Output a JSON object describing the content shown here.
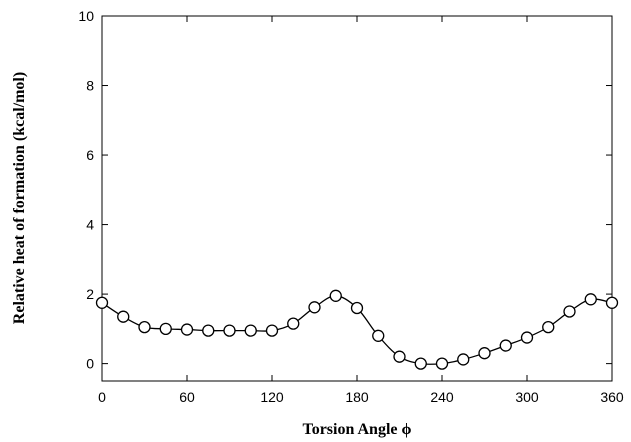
{
  "chart_data": {
    "type": "line",
    "title": "",
    "xlabel": "Torsion Angle ϕ",
    "ylabel": "Relative heat of formation (kcal/mol)",
    "xlim": [
      0,
      360
    ],
    "ylim": [
      -0.5,
      10
    ],
    "x_ticks": [
      0,
      60,
      120,
      180,
      240,
      300,
      360
    ],
    "y_ticks": [
      0,
      2,
      4,
      6,
      8,
      10
    ],
    "grid": false,
    "legend": "none",
    "markers": "open-circle",
    "colors": {
      "line": "#000000",
      "marker": "#000000",
      "background": "#ffffff"
    },
    "series": [
      {
        "x": [
          0,
          15,
          30,
          45,
          60,
          75,
          90,
          105,
          120,
          135,
          150,
          165,
          180,
          195,
          210,
          225,
          240,
          255,
          270,
          285,
          300,
          315,
          330,
          345,
          360
        ],
        "y": [
          1.75,
          1.35,
          1.05,
          1.0,
          0.98,
          0.95,
          0.95,
          0.95,
          0.95,
          1.15,
          1.62,
          1.95,
          1.6,
          0.8,
          0.2,
          0.0,
          0.0,
          0.12,
          0.3,
          0.52,
          0.75,
          1.05,
          1.5,
          1.85,
          1.75
        ]
      }
    ]
  }
}
